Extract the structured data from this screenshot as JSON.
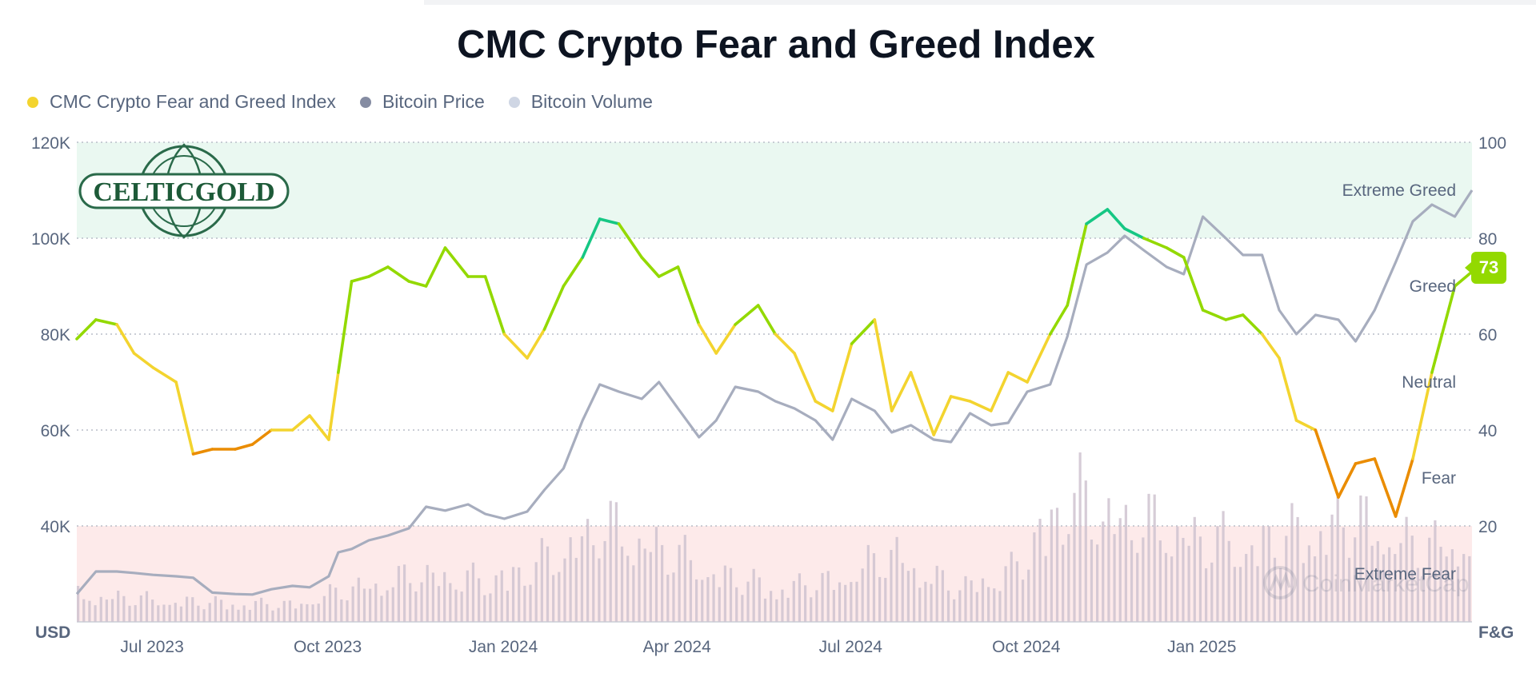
{
  "chart_data": {
    "type": "line",
    "title": "CMC Crypto Fear and Greed Index",
    "legend": [
      {
        "label": "CMC Crypto Fear and Greed Index",
        "color": "#f3d42f"
      },
      {
        "label": "Bitcoin Price",
        "color": "#858ca2"
      },
      {
        "label": "Bitcoin Volume",
        "color": "#cfd6e4"
      }
    ],
    "legend_position": "top-left",
    "y_left": {
      "unit_label": "USD",
      "range": [
        20000,
        120000
      ],
      "ticks": [
        "120K",
        "100K",
        "80K",
        "60K",
        "40K"
      ]
    },
    "y_right": {
      "unit_label": "F&G",
      "range": [
        0,
        100
      ],
      "ticks": [
        "100",
        "80",
        "60",
        "40",
        "20"
      ]
    },
    "x_ticks": [
      "Jul 2023",
      "Oct 2023",
      "Jan 2024",
      "Apr 2024",
      "Jul 2024",
      "Oct 2024",
      "Jan 2025"
    ],
    "x_range": [
      "2023-06-10",
      "2025-06-10"
    ],
    "zones": [
      {
        "label": "Extreme Greed",
        "from": 80,
        "to": 100,
        "color": "#eaf8f1"
      },
      {
        "label": "Greed",
        "from": 60,
        "to": 80
      },
      {
        "label": "Neutral",
        "from": 40,
        "to": 60
      },
      {
        "label": "Fear",
        "from": 20,
        "to": 40
      },
      {
        "label": "Extreme Fear",
        "from": 0,
        "to": 20,
        "color": "#fdeaea"
      }
    ],
    "grid": true,
    "current_value": "73",
    "watermark": "CoinMarketCap",
    "logo": "CELTICGOLD",
    "fear_greed_series": {
      "name": "CMC Crypto Fear and Greed Index",
      "x": [
        "2023-06-10",
        "2023-06-20",
        "2023-07-01",
        "2023-07-10",
        "2023-07-20",
        "2023-08-01",
        "2023-08-10",
        "2023-08-20",
        "2023-09-01",
        "2023-09-10",
        "2023-09-20",
        "2023-10-01",
        "2023-10-10",
        "2023-10-20",
        "2023-10-25",
        "2023-11-01",
        "2023-11-10",
        "2023-11-20",
        "2023-12-01",
        "2023-12-10",
        "2023-12-20",
        "2024-01-01",
        "2024-01-10",
        "2024-01-20",
        "2024-02-01",
        "2024-02-10",
        "2024-02-20",
        "2024-03-01",
        "2024-03-10",
        "2024-03-20",
        "2024-04-01",
        "2024-04-10",
        "2024-04-20",
        "2024-05-01",
        "2024-05-10",
        "2024-05-20",
        "2024-06-01",
        "2024-06-10",
        "2024-06-20",
        "2024-07-01",
        "2024-07-10",
        "2024-07-20",
        "2024-08-01",
        "2024-08-10",
        "2024-08-20",
        "2024-09-01",
        "2024-09-10",
        "2024-09-20",
        "2024-10-01",
        "2024-10-10",
        "2024-10-20",
        "2024-11-01",
        "2024-11-10",
        "2024-11-20",
        "2024-12-01",
        "2024-12-10",
        "2024-12-20",
        "2025-01-01",
        "2025-01-10",
        "2025-01-20",
        "2025-02-01",
        "2025-02-10",
        "2025-02-20",
        "2025-03-01",
        "2025-03-10",
        "2025-03-20",
        "2025-04-01",
        "2025-04-10",
        "2025-04-20",
        "2025-05-01",
        "2025-05-10",
        "2025-05-20",
        "2025-06-01",
        "2025-06-10"
      ],
      "values": [
        59,
        63,
        62,
        56,
        53,
        50,
        35,
        36,
        36,
        37,
        40,
        40,
        43,
        38,
        52,
        71,
        72,
        74,
        71,
        70,
        78,
        72,
        72,
        60,
        55,
        61,
        70,
        76,
        84,
        83,
        76,
        72,
        74,
        62,
        56,
        62,
        66,
        60,
        56,
        46,
        44,
        58,
        63,
        44,
        52,
        39,
        47,
        46,
        44,
        52,
        50,
        60,
        66,
        83,
        86,
        82,
        80,
        78,
        76,
        65,
        63,
        64,
        60,
        55,
        42,
        40,
        26,
        33,
        34,
        22,
        34,
        52,
        70,
        73
      ]
    },
    "bitcoin_price_series": {
      "name": "Bitcoin Price",
      "x": [
        "2023-06-10",
        "2023-06-20",
        "2023-07-01",
        "2023-07-10",
        "2023-07-20",
        "2023-08-01",
        "2023-08-10",
        "2023-08-20",
        "2023-09-01",
        "2023-09-10",
        "2023-09-20",
        "2023-10-01",
        "2023-10-10",
        "2023-10-20",
        "2023-10-25",
        "2023-11-01",
        "2023-11-10",
        "2023-11-20",
        "2023-12-01",
        "2023-12-10",
        "2023-12-20",
        "2024-01-01",
        "2024-01-10",
        "2024-01-20",
        "2024-02-01",
        "2024-02-10",
        "2024-02-20",
        "2024-03-01",
        "2024-03-10",
        "2024-03-20",
        "2024-04-01",
        "2024-04-10",
        "2024-04-20",
        "2024-05-01",
        "2024-05-10",
        "2024-05-20",
        "2024-06-01",
        "2024-06-10",
        "2024-06-20",
        "2024-07-01",
        "2024-07-10",
        "2024-07-20",
        "2024-08-01",
        "2024-08-10",
        "2024-08-20",
        "2024-09-01",
        "2024-09-10",
        "2024-09-20",
        "2024-10-01",
        "2024-10-10",
        "2024-10-20",
        "2024-11-01",
        "2024-11-10",
        "2024-11-20",
        "2024-12-01",
        "2024-12-10",
        "2024-12-20",
        "2025-01-01",
        "2025-01-10",
        "2025-01-20",
        "2025-02-01",
        "2025-02-10",
        "2025-02-20",
        "2025-03-01",
        "2025-03-10",
        "2025-03-20",
        "2025-04-01",
        "2025-04-10",
        "2025-04-20",
        "2025-05-01",
        "2025-05-10",
        "2025-05-20",
        "2025-06-01",
        "2025-06-10"
      ],
      "values": [
        25800,
        30500,
        30500,
        30200,
        29800,
        29500,
        29200,
        26100,
        25800,
        25700,
        26800,
        27500,
        27200,
        29500,
        34500,
        35200,
        37000,
        38000,
        39500,
        44000,
        43200,
        44500,
        42500,
        41500,
        43000,
        47500,
        52000,
        62000,
        69500,
        68000,
        66500,
        70000,
        64500,
        58500,
        62000,
        69000,
        68000,
        66000,
        64500,
        62000,
        58000,
        66500,
        64000,
        59500,
        61000,
        58000,
        57500,
        63500,
        61000,
        61500,
        68000,
        69500,
        79500,
        94500,
        97000,
        100500,
        97500,
        94000,
        92500,
        104500,
        100000,
        96500,
        96500,
        85000,
        80000,
        84000,
        83000,
        78500,
        85000,
        95000,
        103500,
        107000,
        104500,
        110000
      ]
    },
    "bitcoin_volume_series": {
      "name": "Bitcoin Volume",
      "x": [
        "2023-06-10",
        "2023-08-01",
        "2023-10-01",
        "2023-11-01",
        "2023-12-10",
        "2024-01-10",
        "2024-02-10",
        "2024-03-10",
        "2024-04-10",
        "2024-05-10",
        "2024-06-10",
        "2024-07-10",
        "2024-08-10",
        "2024-09-10",
        "2024-10-10",
        "2024-11-10",
        "2024-11-20",
        "2024-12-10",
        "2025-01-10",
        "2025-02-10",
        "2025-03-10",
        "2025-04-10",
        "2025-05-10",
        "2025-06-10"
      ],
      "values": [
        8,
        6,
        5,
        10,
        14,
        12,
        18,
        28,
        22,
        14,
        10,
        12,
        20,
        10,
        14,
        38,
        34,
        30,
        26,
        22,
        26,
        30,
        22,
        24
      ]
    }
  }
}
